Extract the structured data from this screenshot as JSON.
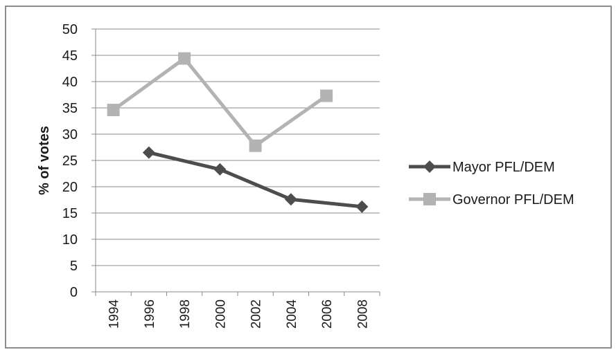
{
  "chart_data": {
    "type": "line",
    "title": "",
    "xlabel": "",
    "ylabel": "% of votes",
    "categories": [
      "1994",
      "1996",
      "1998",
      "2000",
      "2002",
      "2004",
      "2006",
      "2008"
    ],
    "ylim": [
      0,
      50
    ],
    "yticks": [
      0,
      5,
      10,
      15,
      20,
      25,
      30,
      35,
      40,
      45,
      50
    ],
    "grid": "horizontal",
    "legend_position": "right",
    "series": [
      {
        "name": "Mayor PFL/DEM",
        "marker": "diamond",
        "color": "#4d4d4d",
        "values": [
          null,
          26.5,
          null,
          23.3,
          null,
          17.6,
          null,
          16.2
        ]
      },
      {
        "name": "Governor PFL/DEM",
        "marker": "square",
        "color": "#b3b3b3",
        "values": [
          34.6,
          null,
          44.4,
          null,
          27.8,
          null,
          37.3,
          null
        ]
      }
    ]
  }
}
